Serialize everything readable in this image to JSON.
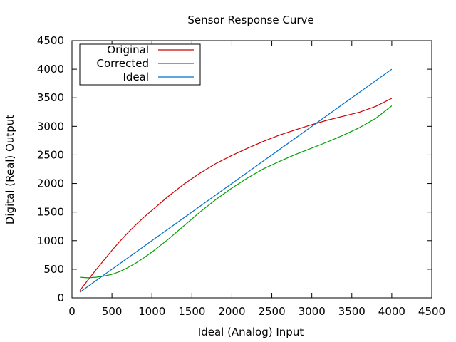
{
  "chart_data": {
    "type": "line",
    "title": "Sensor Response Curve",
    "xlabel": "Ideal (Analog) Input",
    "ylabel": "Digital (Real) Output",
    "xlim": [
      0,
      4500
    ],
    "ylim": [
      0,
      4500
    ],
    "xticks": [
      0,
      500,
      1000,
      1500,
      2000,
      2500,
      3000,
      3500,
      4000,
      4500
    ],
    "yticks": [
      0,
      500,
      1000,
      1500,
      2000,
      2500,
      3000,
      3500,
      4000,
      4500
    ],
    "legend_position": "top-left",
    "grid": false,
    "series": [
      {
        "name": "Original",
        "color": "#cc0000",
        "x": [
          100,
          200,
          300,
          400,
          500,
          600,
          700,
          800,
          900,
          1000,
          1200,
          1400,
          1600,
          1800,
          2000,
          2200,
          2400,
          2600,
          2800,
          3000,
          3200,
          3400,
          3600,
          3800,
          4000
        ],
        "y": [
          130,
          310,
          490,
          660,
          830,
          990,
          1140,
          1280,
          1410,
          1530,
          1770,
          1990,
          2180,
          2350,
          2490,
          2620,
          2740,
          2850,
          2940,
          3030,
          3110,
          3180,
          3250,
          3350,
          3490
        ]
      },
      {
        "name": "Corrected",
        "color": "#00a000",
        "x": [
          100,
          200,
          300,
          400,
          500,
          600,
          700,
          800,
          900,
          1000,
          1200,
          1400,
          1600,
          1800,
          2000,
          2200,
          2400,
          2600,
          2800,
          3000,
          3200,
          3400,
          3600,
          3800,
          4000
        ],
        "y": [
          360,
          350,
          360,
          380,
          410,
          460,
          530,
          610,
          700,
          800,
          1020,
          1260,
          1500,
          1720,
          1920,
          2100,
          2260,
          2390,
          2510,
          2620,
          2730,
          2850,
          2980,
          3140,
          3360
        ]
      },
      {
        "name": "Ideal",
        "color": "#0070c8",
        "x": [
          100,
          4000
        ],
        "y": [
          100,
          4000
        ]
      }
    ]
  }
}
